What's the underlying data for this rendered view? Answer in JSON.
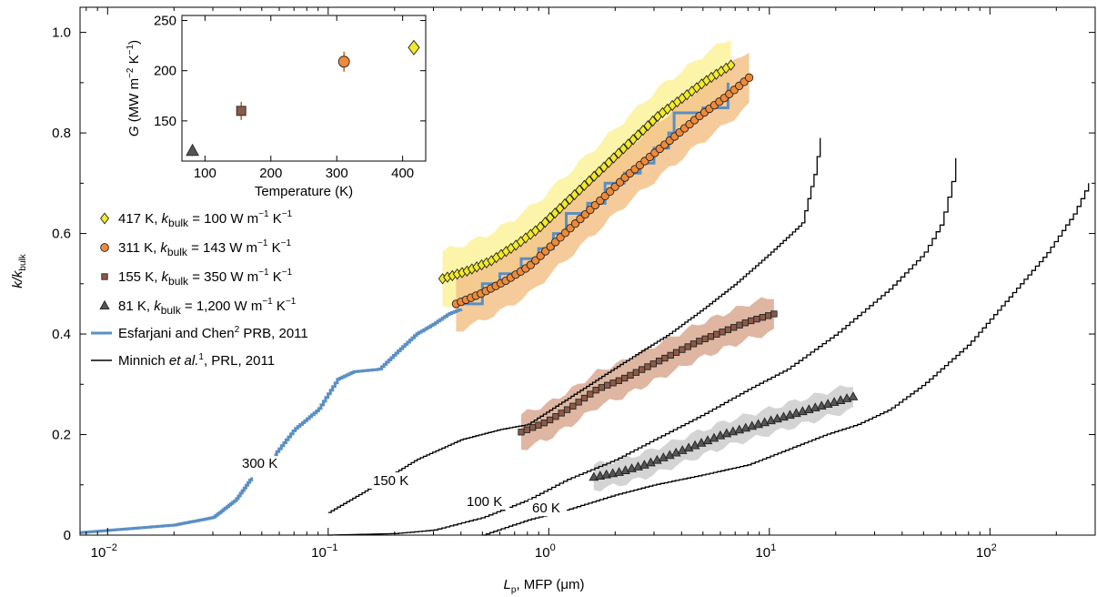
{
  "chart_data": {
    "type": "scatter",
    "xscale": "log",
    "xlabel": {
      "main": "L",
      "sub": "p",
      "rest": ", MFP (μm)"
    },
    "ylabel": {
      "main": "k/k",
      "sub": "bulk"
    },
    "xlim": [
      0.0075,
      300
    ],
    "ylim": [
      0,
      1.05
    ],
    "xticks": [
      {
        "value": 0.01,
        "base": "10",
        "exp": "−2"
      },
      {
        "value": 0.1,
        "base": "10",
        "exp": "−1"
      },
      {
        "value": 1,
        "base": "10",
        "exp": "0"
      },
      {
        "value": 10,
        "base": "10",
        "exp": "1"
      },
      {
        "value": 100,
        "base": "10",
        "exp": "2"
      }
    ],
    "yticks": [
      {
        "value": 0,
        "label": "0"
      },
      {
        "value": 0.2,
        "label": "0.2"
      },
      {
        "value": 0.4,
        "label": "0.4"
      },
      {
        "value": 0.6,
        "label": "0.6"
      },
      {
        "value": 0.8,
        "label": "0.8"
      },
      {
        "value": 1.0,
        "label": "1.0"
      }
    ],
    "series": [
      {
        "name": "417 K",
        "legend": {
          "pre": "417 K, ",
          "k": "k",
          "sub": "bulk",
          "post": " = 100 W m",
          "sup1": "−1",
          "mid": " K",
          "sup2": "−1"
        },
        "marker": "diamond",
        "color": "#f2ea2a",
        "band_color": "#fbf39a",
        "x_start": 0.33,
        "x_end": 6.7,
        "points": 60,
        "y": [
          0.51,
          0.525,
          0.545,
          0.575,
          0.61,
          0.655,
          0.7,
          0.745,
          0.79,
          0.835,
          0.87,
          0.905,
          0.935
        ],
        "band_halfwidth": 0.055
      },
      {
        "name": "311 K",
        "legend": {
          "pre": "311 K, ",
          "k": "k",
          "sub": "bulk",
          "post": " = 143 W m",
          "sup1": "−1",
          "mid": " K",
          "sup2": "−1"
        },
        "marker": "circle",
        "color": "#ee8a3a",
        "band_color": "#f3c28a",
        "x_start": 0.38,
        "x_end": 8.1,
        "points": 60,
        "y": [
          0.46,
          0.48,
          0.505,
          0.535,
          0.58,
          0.625,
          0.67,
          0.715,
          0.755,
          0.795,
          0.835,
          0.87,
          0.91
        ],
        "band_halfwidth": 0.055
      },
      {
        "name": "155 K",
        "legend": {
          "pre": "155 K, ",
          "k": "k",
          "sub": "bulk",
          "post": " = 350 W m",
          "sup1": "−1",
          "mid": " K",
          "sup2": "−1"
        },
        "marker": "square",
        "color": "#8c5a48",
        "band_color": "#d9a990",
        "x_start": 0.75,
        "x_end": 10.5,
        "points": 45,
        "y": [
          0.205,
          0.225,
          0.255,
          0.29,
          0.31,
          0.335,
          0.36,
          0.385,
          0.405,
          0.425,
          0.44
        ],
        "band_halfwidth": 0.035
      },
      {
        "name": "81 K",
        "legend": {
          "pre": "81 K, ",
          "k": "k",
          "sub": "bulk",
          "post": " = 1,200 W m",
          "sup1": "−1",
          "mid": " K",
          "sup2": "−1"
        },
        "marker": "triangle",
        "color": "#555555",
        "band_color": "#cccccc",
        "x_start": 1.6,
        "x_end": 24,
        "points": 42,
        "y": [
          0.115,
          0.125,
          0.14,
          0.16,
          0.18,
          0.2,
          0.215,
          0.23,
          0.245,
          0.26,
          0.275
        ],
        "band_halfwidth": 0.025
      }
    ],
    "esfarjani": {
      "name": "Esfarjani and Chen² PRB, 2011",
      "legend": {
        "pre": "Esfarjani and Chen",
        "sup": "2",
        "post": " PRB, 2011"
      },
      "color": "#5a8fc4",
      "label": "300 K",
      "part1": {
        "x": [
          0.0075,
          0.02,
          0.03,
          0.038,
          0.045
        ],
        "y": [
          0.005,
          0.02,
          0.035,
          0.07,
          0.115
        ]
      },
      "part2": {
        "x": [
          0.057,
          0.07,
          0.09,
          0.11,
          0.13,
          0.17,
          0.2,
          0.25,
          0.3,
          0.35,
          0.4
        ],
        "y": [
          0.16,
          0.21,
          0.25,
          0.31,
          0.325,
          0.33,
          0.36,
          0.4,
          0.42,
          0.44,
          0.45
        ]
      },
      "steps": [
        [
          0.4,
          0.46
        ],
        [
          0.5,
          0.5
        ],
        [
          0.6,
          0.52
        ],
        [
          0.75,
          0.55
        ],
        [
          0.9,
          0.57
        ],
        [
          1.05,
          0.6
        ],
        [
          1.2,
          0.64
        ],
        [
          1.5,
          0.66
        ],
        [
          1.8,
          0.7
        ],
        [
          2.2,
          0.72
        ],
        [
          2.6,
          0.74
        ],
        [
          3.0,
          0.77
        ],
        [
          3.5,
          0.8
        ],
        [
          3.7,
          0.84
        ],
        [
          5.0,
          0.85
        ],
        [
          6.5,
          0.855
        ],
        [
          6.5,
          0.9
        ]
      ]
    },
    "minnich": {
      "legend": {
        "pre": "Minnich ",
        "it": "et al.",
        "sup": "1",
        "post": ", PRL, 2011"
      },
      "color": "#000000",
      "curves": [
        {
          "label": "150 K",
          "x": [
            0.1,
            0.15,
            0.25,
            0.4,
            0.6,
            0.8,
            1.2,
            1.8,
            2.5,
            3.5,
            5,
            7,
            10,
            14,
            16,
            17
          ],
          "y": [
            0.045,
            0.09,
            0.15,
            0.19,
            0.21,
            0.22,
            0.27,
            0.32,
            0.36,
            0.4,
            0.45,
            0.5,
            0.56,
            0.62,
            0.72,
            0.79
          ]
        },
        {
          "label": "100 K",
          "x": [
            0.1,
            0.2,
            0.3,
            0.5,
            0.8,
            1.2,
            2,
            3,
            5,
            8,
            12,
            20,
            35,
            50,
            60,
            67,
            70
          ],
          "y": [
            0.0,
            0.003,
            0.01,
            0.035,
            0.07,
            0.11,
            0.15,
            0.19,
            0.24,
            0.29,
            0.33,
            0.4,
            0.49,
            0.56,
            0.62,
            0.7,
            0.75
          ]
        },
        {
          "label": "60 K",
          "x": [
            0.5,
            0.8,
            1.2,
            2,
            3,
            5,
            8,
            12,
            18,
            25,
            35,
            50,
            80,
            120,
            180,
            240,
            280
          ],
          "y": [
            0.0,
            0.03,
            0.05,
            0.08,
            0.1,
            0.12,
            0.14,
            0.17,
            0.2,
            0.22,
            0.25,
            0.3,
            0.38,
            0.47,
            0.56,
            0.64,
            0.7
          ]
        }
      ]
    },
    "inset": {
      "type": "scatter",
      "xlabel": "Temperature (K)",
      "ylabel": {
        "g": "G",
        "pre": " (MW m",
        "sup1": "−2",
        "mid": " K",
        "sup2": "−1",
        "post": ")"
      },
      "xlim": [
        65,
        435
      ],
      "ylim": [
        110,
        255
      ],
      "xticks": [
        100,
        200,
        300,
        400
      ],
      "yticks": [
        150,
        200,
        250
      ],
      "points": [
        {
          "x": 81,
          "y": 120,
          "marker": "triangle",
          "color": "#555555",
          "err": 5
        },
        {
          "x": 155,
          "y": 160,
          "marker": "square",
          "color": "#8c5a48",
          "err": 9
        },
        {
          "x": 311,
          "y": 209,
          "marker": "circle",
          "color": "#ee8a3a",
          "err": 10
        },
        {
          "x": 417,
          "y": 223,
          "marker": "diamond",
          "color": "#f2ea2a",
          "err": 7
        }
      ]
    }
  }
}
